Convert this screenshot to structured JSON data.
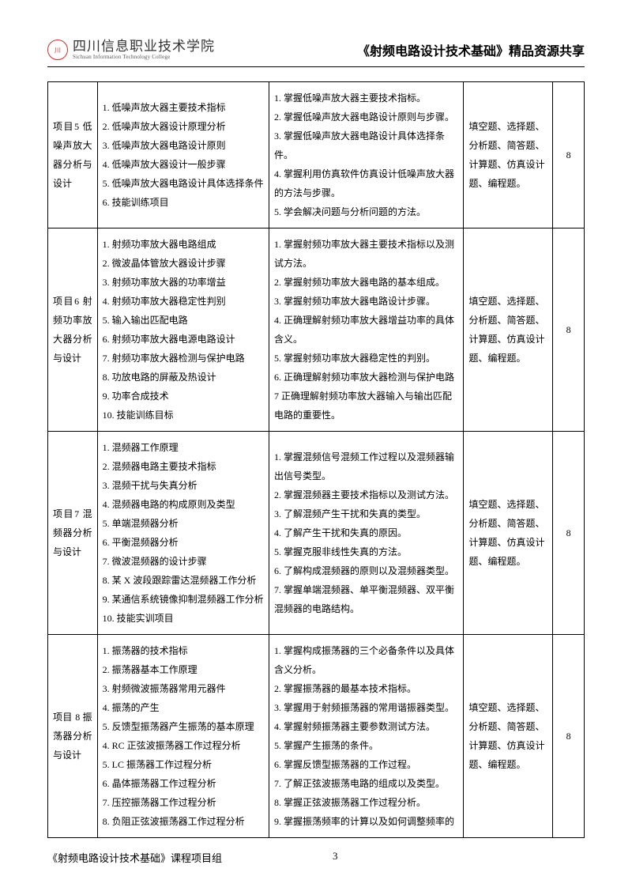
{
  "header": {
    "logo_cn": "四川信息职业技术学院",
    "logo_en": "Sichuan Information Technology College",
    "title": "《射频电路设计技术基础》精品资源共享"
  },
  "rows": [
    {
      "c1": "项目5 低噪声放大器分析与设计",
      "c2": "1. 低噪声放大器主要技术指标\n2. 低噪声放大器设计原理分析\n3. 低噪声放大器电路设计原则\n4. 低噪声放大器设计一般步骤\n5. 低噪声放大器电路设计具体选择条件\n6. 技能训练项目",
      "c3": "1. 掌握低噪声放大器主要技术指标。\n2. 掌握低噪声放大器电路设计原则与步骤。\n3. 掌握低噪声放大器电路设计具体选择条件。\n4. 掌握利用仿真软件仿真设计低噪声放大器的方法与步骤。\n5. 学会解决问题与分析问题的方法。",
      "c4": "填空题、选择题、分析题、简答题、计算题、仿真设计题、编程题。",
      "c5": "8"
    },
    {
      "c1": "项目6  射频功率放大器分析与设计",
      "c2": "1. 射频功率放大器电路组成\n2. 微波晶体管放大器设计步骤\n3. 射频功率放大器的功率增益\n4. 射频功率放大器稳定性判别\n5. 输入输出匹配电路\n6. 射频功率放大器电源电路设计\n7. 射频功率放大器检测与保护电路\n8. 功放电路的屏蔽及热设计\n9. 功率合成技术\n10. 技能训练目标",
      "c3": "1. 掌握射频功率放大器主要技术指标以及测试方法。\n2. 掌握射频功率放大器电路的基本组成。\n3. 掌握射频功率放大器电路设计步骤。\n4. 正确理解射频功率放大器增益功率的具体含义。\n5. 掌握射频功率放大器稳定性的判别。\n6. 正确理解射频功率放大器检测与保护电路\n7 正确理解射频功率放大器输入与输出匹配电路的重要性。",
      "c4": "填空题、选择题、分析题、简答题、计算题、仿真设计题、编程题。",
      "c5": "8"
    },
    {
      "c1": "项目7  混频器分析与设计",
      "c2": "1. 混频器工作原理\n2. 混频器电路主要技术指标\n3. 混频干扰与失真分析\n4. 混频器电路的构成原则及类型\n5. 单端混频器分析\n6. 平衡混频器分析\n7. 微波混频器的设计步骤\n8. 某 X 波段跟踪雷达混频器工作分析\n9. 某通信系统镜像抑制混频器工作分析\n10. 技能实训项目",
      "c3": "1. 掌握混频信号混频工作过程以及混频器输出信号类型。\n2. 掌握混频器主要技术指标以及测试方法。\n3. 了解混频产生干扰和失真的类型。\n4. 了解产生干扰和失真的原因。\n5. 掌握克服非线性失真的方法。\n6. 了解构成混频器的原则以及混频器类型。\n7. 掌握单端混频器、单平衡混频器、双平衡混频器的电路结构。",
      "c4": "填空题、选择题、分析题、简答题、计算题、仿真设计题、编程题。",
      "c5": "8"
    },
    {
      "c1": "项目 8 振荡器分析与设计",
      "c2": "1. 振荡器的技术指标\n2. 振荡器基本工作原理\n3. 射频微波振荡器常用元器件\n4.  振荡的产生\n5. 反馈型振荡器产生振荡的基本原理\n4. RC 正弦波振荡器工作过程分析\n5. LC 振荡器工作过程分析\n6. 晶体振荡器工作过程分析\n7. 压控振荡器工作过程分析\n8. 负阻正弦波振荡器工作过程分析",
      "c3": "1. 掌握构成振荡器的三个必备条件以及具体含义分析。\n2. 掌握振荡器的最基本技术指标。\n3. 掌握用于射频振荡器的常用谐振器类型。\n4. 掌握射频振荡器主要参数测试方法。\n5. 掌握产生振荡的条件。\n6. 掌握反馈型振荡器的工作过程。\n7. 了解正弦波振荡电路的组成以及类型。\n8. 掌握正弦波振荡器工作过程分析。\n9. 掌握振荡频率的计算以及如何调整频率的",
      "c4": "填空题、选择题、分析题、简答题、计算题、仿真设计题、编程题。",
      "c5": "8"
    }
  ],
  "footer": {
    "left": "《射频电路设计技术基础》课程项目组",
    "page": "3"
  }
}
